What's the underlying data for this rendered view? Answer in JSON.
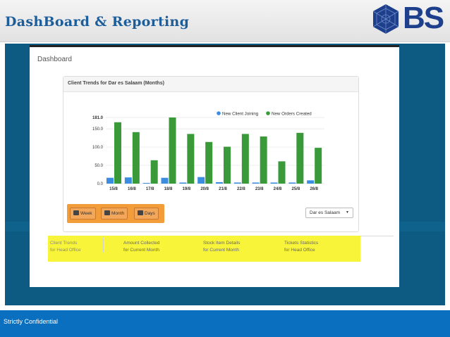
{
  "slide": {
    "title": "DashBoard & Reporting",
    "logo_text": "BS",
    "footer": "Strictly Confidential"
  },
  "app": {
    "page_title": "Dashboard",
    "panel_title": "Client Trends for Dar es Salaam (Months)",
    "period_buttons": [
      "Week",
      "Month",
      "Days"
    ],
    "location_select": "Dar es Salaam",
    "stats": [
      {
        "line1": "Client Trends",
        "line2": "for Head Office"
      },
      {
        "line1": "Amount Collected",
        "line2": "for Current Month"
      },
      {
        "line1": "Stock Item Details",
        "line2": "for Current Month"
      },
      {
        "line1": "Tickets Statistics",
        "line2": "for Head Office"
      }
    ]
  },
  "colors": {
    "header_title": "#1c5d9a",
    "logo": "#1d3f8c",
    "panel_bg": "#0d5a82",
    "footer_bg": "#0b6fbf",
    "series_clients": "#3b8de0",
    "series_orders": "#3a9a3a",
    "button_highlight": "#f39c3a",
    "stats_highlight": "#f8f43a"
  },
  "chart_data": {
    "type": "bar",
    "categories": [
      "15/8",
      "16/8",
      "17/8",
      "18/8",
      "19/8",
      "20/8",
      "21/8",
      "22/8",
      "23/8",
      "24/8",
      "25/8",
      "26/8"
    ],
    "series": [
      {
        "name": "New Client Joining",
        "values": [
          16,
          17,
          2,
          16,
          3,
          18,
          4,
          3,
          3,
          3,
          3,
          9
        ]
      },
      {
        "name": "New Orders Created",
        "values": [
          168,
          141,
          64,
          181,
          136,
          114,
          101,
          136,
          129,
          61,
          139,
          98
        ]
      }
    ],
    "ylim": [
      0,
      181
    ],
    "y_ticks": [
      "0.0",
      "50.0",
      "100.0",
      "150.0",
      "181.0"
    ],
    "grid": true,
    "legend_position": "top-right"
  }
}
